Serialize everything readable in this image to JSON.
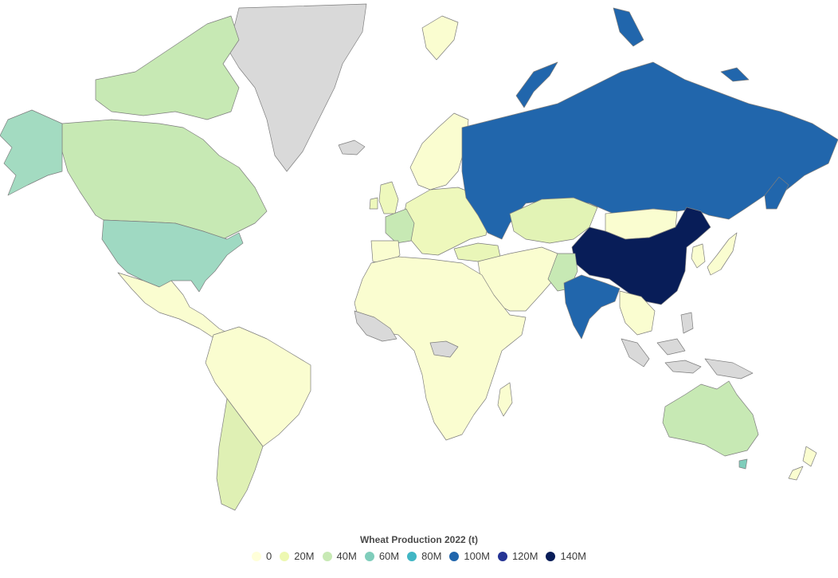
{
  "map": {
    "legend_title": "Wheat Production 2022 (t)",
    "no_data_color": "#d9d9d9",
    "scale": [
      {
        "label": "0",
        "color": "#ffffd9"
      },
      {
        "label": "20M",
        "color": "#edf8b1"
      },
      {
        "label": "40M",
        "color": "#c7e9b4"
      },
      {
        "label": "60M",
        "color": "#7fcdbb"
      },
      {
        "label": "80M",
        "color": "#41b6c4"
      },
      {
        "label": "100M",
        "color": "#2166ac"
      },
      {
        "label": "120M",
        "color": "#253494"
      },
      {
        "label": "140M",
        "color": "#081d58"
      }
    ],
    "regions": [
      {
        "name": "greenland",
        "color": "#d9d9d9"
      },
      {
        "name": "canada",
        "color": "#c7e9b4"
      },
      {
        "name": "alaska",
        "color": "#a3dbc1"
      },
      {
        "name": "usa",
        "color": "#9fd9c2"
      },
      {
        "name": "mexico-central-america",
        "color": "#fafdd0"
      },
      {
        "name": "south-america-north",
        "color": "#fafdd0"
      },
      {
        "name": "argentina",
        "color": "#dff0b4"
      },
      {
        "name": "europe",
        "color": "#eef8bc"
      },
      {
        "name": "france",
        "color": "#c7e9b4"
      },
      {
        "name": "scandinavia",
        "color": "#fafdd0"
      },
      {
        "name": "russia",
        "color": "#2166ac"
      },
      {
        "name": "kazakhstan",
        "color": "#e2f3b5"
      },
      {
        "name": "mongolia",
        "color": "#fafdd0"
      },
      {
        "name": "china",
        "color": "#081d58"
      },
      {
        "name": "india",
        "color": "#2166ac"
      },
      {
        "name": "pakistan",
        "color": "#c7e9b4"
      },
      {
        "name": "middle-east",
        "color": "#fafdd0"
      },
      {
        "name": "turkey",
        "color": "#e9f6b8"
      },
      {
        "name": "africa",
        "color": "#fafdd0"
      },
      {
        "name": "west-africa-no-data",
        "color": "#d9d9d9"
      },
      {
        "name": "southeast-asia-no-data",
        "color": "#d9d9d9"
      },
      {
        "name": "japan-korea",
        "color": "#fafdd0"
      },
      {
        "name": "australia",
        "color": "#c7e9b4"
      },
      {
        "name": "new-zealand",
        "color": "#fafdd0"
      },
      {
        "name": "svalbard",
        "color": "#fafdd0"
      },
      {
        "name": "iceland",
        "color": "#d9d9d9"
      },
      {
        "name": "uk",
        "color": "#eef8bc"
      },
      {
        "name": "indonesia-png",
        "color": "#d9d9d9"
      },
      {
        "name": "madagascar",
        "color": "#fafdd0"
      },
      {
        "name": "novaya-zemlya",
        "color": "#2166ac"
      }
    ]
  }
}
